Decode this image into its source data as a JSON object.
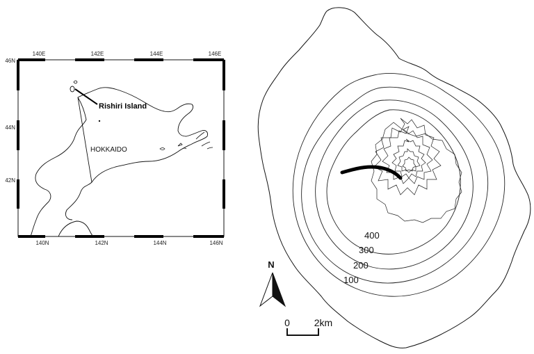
{
  "inset_map": {
    "top_ticks": [
      "140E",
      "142E",
      "144E",
      "146E"
    ],
    "bottom_ticks": [
      "140N",
      "142N",
      "144N",
      "146N"
    ],
    "left_ticks": [
      "46N",
      "44N",
      "42N"
    ],
    "island_label": "Rishiri Island",
    "region_label": "HOKKAIDO"
  },
  "island_map": {
    "contour_labels": [
      "400",
      "300",
      "200",
      "100"
    ],
    "north_label": "N",
    "scale_start": "0",
    "scale_end": "2km"
  },
  "colors": {
    "ink": "#111111",
    "background": "#ffffff"
  }
}
